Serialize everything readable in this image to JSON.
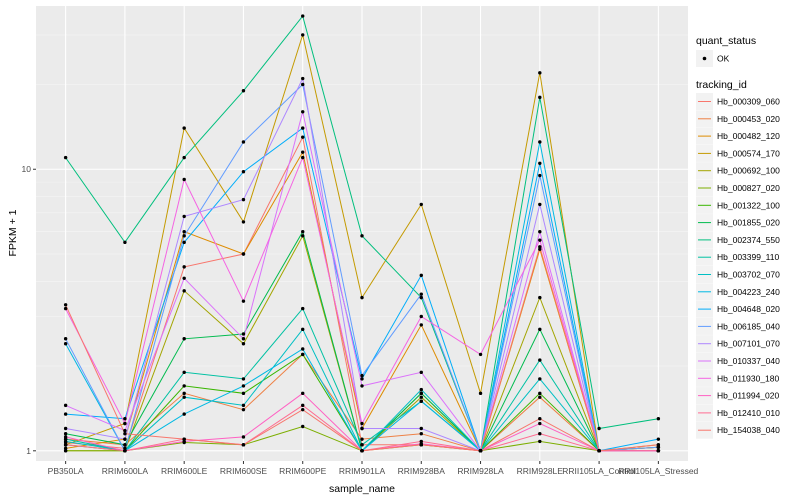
{
  "chart_data": {
    "type": "line",
    "xlabel": "sample_name",
    "ylabel": "FPKM + 1",
    "y_scale": "log10",
    "ylim": [
      0.92,
      38
    ],
    "y_ticks": [
      1,
      10
    ],
    "y_tick_labels": [
      "1",
      "10"
    ],
    "grid": true,
    "legend_position": "right",
    "categories": [
      "PB350LA",
      "RRIM600LA",
      "RRIM600LE",
      "RRIM600SE",
      "RRIM600PE",
      "RRIM901LA",
      "RRIM928BA",
      "RRIM928LA",
      "RRIM928LE",
      "RRII105LA_Control",
      "RRII105LA_Stressed"
    ],
    "quant_status_legend": {
      "title": "quant_status",
      "entries": [
        "OK"
      ]
    },
    "tracking_legend_title": "tracking_id",
    "series": [
      {
        "name": "Hb_000309_060",
        "color": "#F8766D",
        "values": [
          1.07,
          1.02,
          4.5,
          5.0,
          13.0,
          1.05,
          1.05,
          1.0,
          1.3,
          1.0,
          1.03
        ]
      },
      {
        "name": "Hb_000453_020",
        "color": "#EE8044",
        "values": [
          1.1,
          1.05,
          1.6,
          1.4,
          2.2,
          1.1,
          1.15,
          1.0,
          1.55,
          1.0,
          1.03
        ]
      },
      {
        "name": "Hb_000482_120",
        "color": "#DE8C00",
        "values": [
          1.02,
          1.1,
          6.0,
          5.0,
          11.5,
          1.2,
          2.8,
          1.0,
          5.2,
          1.0,
          1.03
        ]
      },
      {
        "name": "Hb_000574_170",
        "color": "#C49A00",
        "values": [
          1.05,
          1.25,
          14.0,
          6.5,
          30.0,
          3.5,
          7.5,
          1.6,
          22.0,
          1.0,
          1.05
        ]
      },
      {
        "name": "Hb_000692_100",
        "color": "#A3A500",
        "values": [
          1.0,
          1.0,
          3.7,
          2.4,
          5.8,
          1.0,
          1.55,
          1.0,
          3.5,
          1.0,
          1.03
        ]
      },
      {
        "name": "Hb_000827_020",
        "color": "#7CAE00",
        "values": [
          1.0,
          1.0,
          1.07,
          1.05,
          1.22,
          1.0,
          1.05,
          1.0,
          1.08,
          1.0,
          1.0
        ]
      },
      {
        "name": "Hb_001322_100",
        "color": "#39B600",
        "values": [
          1.05,
          1.0,
          1.7,
          1.6,
          2.2,
          1.0,
          1.6,
          1.0,
          1.6,
          1.0,
          1.0
        ]
      },
      {
        "name": "Hb_001855_020",
        "color": "#00BB4E",
        "values": [
          1.15,
          1.05,
          2.5,
          2.6,
          6.0,
          1.0,
          1.6,
          1.0,
          2.7,
          1.0,
          1.0
        ]
      },
      {
        "name": "Hb_002374_550",
        "color": "#00BF7D",
        "values": [
          11.0,
          5.5,
          11.0,
          19.0,
          35.0,
          5.8,
          3.5,
          1.0,
          18.0,
          1.2,
          1.3
        ]
      },
      {
        "name": "Hb_003399_110",
        "color": "#00C1A3",
        "values": [
          1.1,
          1.0,
          1.9,
          1.8,
          3.2,
          1.05,
          1.5,
          1.0,
          2.1,
          1.0,
          1.0
        ]
      },
      {
        "name": "Hb_003702_070",
        "color": "#00BFC4",
        "values": [
          1.08,
          1.0,
          1.55,
          1.45,
          2.7,
          1.0,
          1.65,
          1.0,
          1.8,
          1.0,
          1.0
        ]
      },
      {
        "name": "Hb_004223_240",
        "color": "#00B9E3",
        "values": [
          2.4,
          1.0,
          1.35,
          1.7,
          2.3,
          1.0,
          1.5,
          1.0,
          12.5,
          1.0,
          1.0
        ]
      },
      {
        "name": "Hb_004648_020",
        "color": "#00ADFA",
        "values": [
          1.35,
          1.3,
          5.5,
          9.8,
          14.0,
          1.8,
          4.2,
          1.0,
          10.5,
          1.0,
          1.1
        ]
      },
      {
        "name": "Hb_006185_040",
        "color": "#619CFF",
        "values": [
          2.5,
          1.0,
          5.8,
          12.5,
          20.0,
          1.85,
          3.6,
          1.0,
          9.5,
          1.0,
          1.03
        ]
      },
      {
        "name": "Hb_007101_070",
        "color": "#AE87FF",
        "values": [
          1.2,
          1.1,
          6.8,
          7.8,
          21.0,
          1.2,
          1.2,
          1.0,
          7.5,
          1.0,
          1.0
        ]
      },
      {
        "name": "Hb_010337_040",
        "color": "#DB72FB",
        "values": [
          1.45,
          1.18,
          4.1,
          2.5,
          16.0,
          1.7,
          1.9,
          1.0,
          6.0,
          1.0,
          1.0
        ]
      },
      {
        "name": "Hb_011930_180",
        "color": "#F564E3",
        "values": [
          3.2,
          1.25,
          9.2,
          3.4,
          11.0,
          1.25,
          3.0,
          2.2,
          5.6,
          1.0,
          1.0
        ]
      },
      {
        "name": "Hb_011994_020",
        "color": "#FF61C3",
        "values": [
          1.12,
          1.0,
          1.08,
          1.12,
          1.6,
          1.0,
          1.06,
          1.0,
          1.25,
          1.0,
          1.0
        ]
      },
      {
        "name": "Hb_012410_010",
        "color": "#FF6C91",
        "values": [
          1.05,
          1.0,
          1.1,
          1.05,
          1.45,
          1.0,
          1.08,
          1.0,
          1.15,
          1.0,
          1.0
        ]
      },
      {
        "name": "Hb_154038_040",
        "color": "#F8766D",
        "values": [
          3.3,
          1.15,
          1.1,
          1.05,
          1.4,
          1.0,
          1.05,
          1.0,
          5.3,
          1.0,
          1.05
        ]
      }
    ]
  }
}
